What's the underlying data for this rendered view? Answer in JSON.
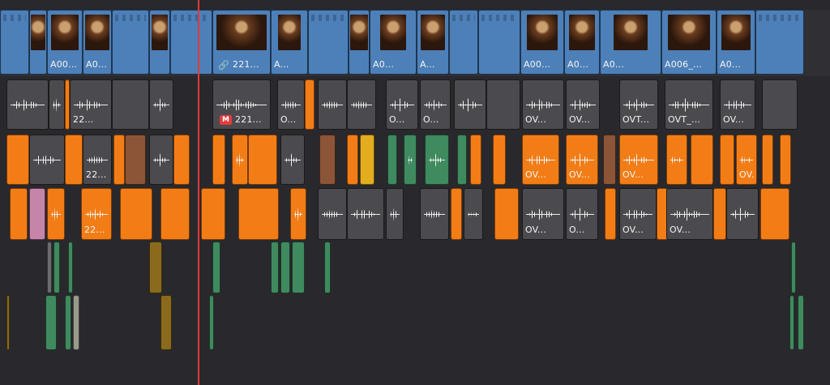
{
  "colors": {
    "background": "#28282d",
    "video_clip": "#4d80b8",
    "audio_clip": "#4b4b4f",
    "audio_orange": "#f27d16",
    "audio_green": "#3f8a5f",
    "playhead": "#e03a3a"
  },
  "video_track": {
    "clips": [
      {
        "label": "",
        "thumb": true
      },
      {
        "label": "A00...",
        "thumb": true
      },
      {
        "label": "A0...",
        "thumb": true
      },
      {
        "label": "",
        "thumb": false
      },
      {
        "label": "",
        "thumb": true
      },
      {
        "label": "",
        "thumb": false
      },
      {
        "label": "",
        "thumb": false
      },
      {
        "label": "221...",
        "thumb": true,
        "linked": true
      },
      {
        "label": "A...",
        "thumb": true
      },
      {
        "label": "",
        "thumb": false
      },
      {
        "label": "",
        "thumb": true
      },
      {
        "label": "A0...",
        "thumb": true
      },
      {
        "label": "A...",
        "thumb": true
      },
      {
        "label": "",
        "thumb": false
      },
      {
        "label": "",
        "thumb": false
      },
      {
        "label": "A00...",
        "thumb": true
      },
      {
        "label": "A0...",
        "thumb": true
      },
      {
        "label": "A0...",
        "thumb": true
      },
      {
        "label": "A006_...",
        "thumb": true
      },
      {
        "label": "A0...",
        "thumb": true
      },
      {
        "label": "",
        "thumb": false
      }
    ]
  },
  "audio_track_1": {
    "clips": [
      {
        "label": ""
      },
      {
        "label": ""
      },
      {
        "label": ""
      },
      {
        "label": "22..."
      },
      {
        "label": ""
      },
      {
        "label": ""
      },
      {
        "label": "221...",
        "muted_badge": "M"
      },
      {
        "label": "O..."
      },
      {
        "label": ""
      },
      {
        "label": ""
      },
      {
        "label": ""
      },
      {
        "label": "O..."
      },
      {
        "label": "O..."
      },
      {
        "label": ""
      },
      {
        "label": ""
      },
      {
        "label": "OV..."
      },
      {
        "label": "OV..."
      },
      {
        "label": "OVT..."
      },
      {
        "label": "OVT_..."
      },
      {
        "label": "OV..."
      },
      {
        "label": ""
      }
    ]
  },
  "audio_track_2": {
    "clips": [
      {
        "label": "22..."
      },
      {
        "label": "OV..."
      },
      {
        "label": "OV..."
      },
      {
        "label": "OV..."
      },
      {
        "label": "OV..."
      }
    ]
  },
  "audio_track_3": {
    "clips": [
      {
        "label": "22..."
      },
      {
        "label": "OV..."
      },
      {
        "label": "O..."
      },
      {
        "label": "OV..."
      },
      {
        "label": "OV..."
      }
    ]
  }
}
